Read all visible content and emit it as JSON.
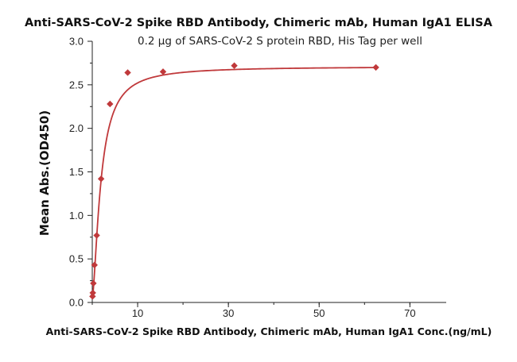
{
  "chart_data": {
    "type": "scatter",
    "title": "Anti-SARS-CoV-2 Spike RBD Antibody, Chimeric mAb, Human IgA1 ELISA",
    "subtitle": "0.2 μg of SARS-CoV-2 S protein RBD, His Tag per well",
    "xlabel": "Anti-SARS-CoV-2 Spike RBD Antibody, Chimeric mAb, Human IgA1 Conc.(ng/mL)",
    "ylabel": "Mean Abs.(OD450)",
    "xlim": [
      0,
      78
    ],
    "ylim": [
      0,
      3.0
    ],
    "x_ticks": [
      10,
      30,
      50,
      70
    ],
    "y_ticks": [
      "0.0",
      "0.5",
      "1.0",
      "1.5",
      "2.0",
      "2.5",
      "3.0"
    ],
    "series": [
      {
        "name": "Mean Abs.(OD450)",
        "color": "#c0393b",
        "x": [
          0.061,
          0.122,
          0.244,
          0.488,
          0.977,
          1.95,
          3.91,
          7.81,
          15.6,
          31.3,
          62.5
        ],
        "y": [
          0.07,
          0.11,
          0.22,
          0.43,
          0.77,
          1.42,
          2.28,
          2.64,
          2.65,
          2.72,
          2.7
        ]
      }
    ],
    "fit_curve": {
      "model": "4PL",
      "bottom": 0.05,
      "top": 2.71,
      "ec50": 1.9,
      "hill": 1.55
    }
  }
}
